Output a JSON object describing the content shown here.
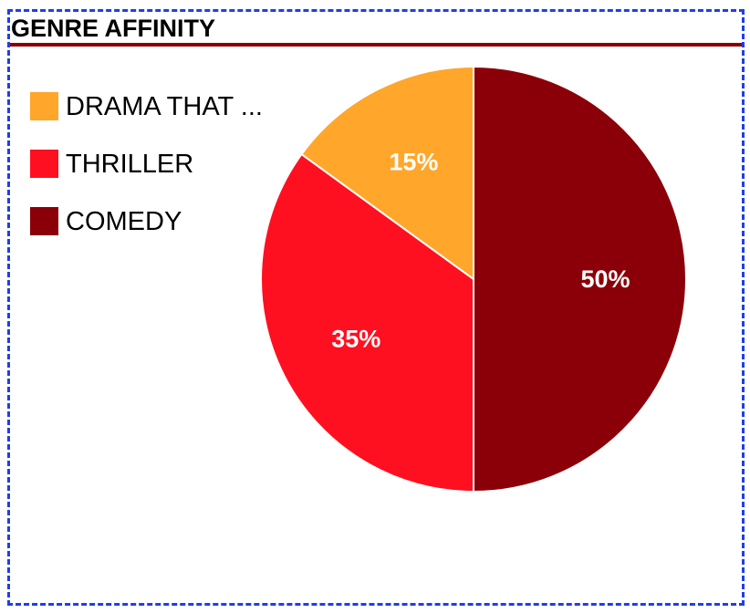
{
  "title": "GENRE AFFINITY",
  "chart_data": {
    "type": "pie",
    "title": "GENRE AFFINITY",
    "legend_position": "top-left",
    "slices": [
      {
        "label": "DRAMA THAT ...",
        "value": 15,
        "display": "15%",
        "color": "#ffa62b"
      },
      {
        "label": "THRILLER",
        "value": 35,
        "display": "35%",
        "color": "#ff1020"
      },
      {
        "label": "COMEDY",
        "value": 50,
        "display": "50%",
        "color": "#8b0008"
      }
    ]
  },
  "colors": {
    "header_rule": "#8b0000",
    "frame_border": "#1f3df0",
    "slice_stroke": "#ffffff"
  }
}
